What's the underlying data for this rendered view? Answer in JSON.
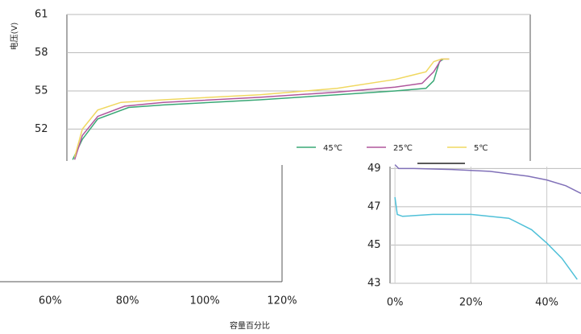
{
  "chart_data": [
    {
      "type": "line",
      "ylabel": "电压(V)",
      "xlim": [
        0,
        120
      ],
      "ylim": [
        49.5,
        61
      ],
      "yticks": [
        52,
        55,
        58,
        61
      ],
      "grid": true,
      "series": [
        {
          "name": "45℃",
          "color": "#3aa876",
          "x": [
            1.5,
            4,
            8,
            16,
            25,
            50,
            70,
            85,
            93,
            95,
            96.5,
            97.5
          ],
          "values": [
            49.6,
            51.2,
            52.8,
            53.7,
            53.9,
            54.3,
            54.7,
            55.0,
            55.2,
            55.8,
            57.3,
            57.5
          ]
        },
        {
          "name": "25℃",
          "color": "#b0569c",
          "x": [
            2,
            4,
            8,
            15,
            25,
            50,
            70,
            85,
            92,
            95,
            97,
            99
          ],
          "values": [
            49.6,
            51.5,
            53,
            53.8,
            54.1,
            54.5,
            54.9,
            55.3,
            55.6,
            56.5,
            57.5,
            57.5
          ]
        },
        {
          "name": "5℃",
          "color": "#f0d860",
          "x": [
            2,
            4,
            8,
            14,
            25,
            50,
            70,
            85,
            93,
            95,
            97,
            99
          ],
          "values": [
            49.8,
            52,
            53.5,
            54.1,
            54.3,
            54.7,
            55.2,
            55.9,
            56.5,
            57.3,
            57.5,
            57.5
          ]
        }
      ]
    },
    {
      "type": "line",
      "xlabel": "容量百分比",
      "xlim": [
        47,
        120
      ],
      "xticks": [
        {
          "value": 60,
          "label": "60%"
        },
        {
          "value": 80,
          "label": "80%"
        },
        {
          "value": 100,
          "label": "100%"
        },
        {
          "value": 120,
          "label": "120%"
        }
      ]
    },
    {
      "type": "line",
      "xlim": [
        -1.3,
        49
      ],
      "ylim": [
        43,
        49.1
      ],
      "yticks": [
        43,
        45,
        47,
        49
      ],
      "xticks": [
        {
          "value": 0,
          "label": "0%"
        },
        {
          "value": 20,
          "label": "20%"
        },
        {
          "value": 40,
          "label": "40%"
        }
      ],
      "grid": true,
      "series": [
        {
          "color": "#8070b8",
          "x": [
            0,
            1,
            5,
            15,
            25,
            35,
            40,
            45,
            49
          ],
          "values": [
            49.2,
            49.0,
            49.0,
            48.95,
            48.85,
            48.6,
            48.4,
            48.1,
            47.7
          ]
        },
        {
          "color": "#4fc0d8",
          "x": [
            0,
            0.6,
            2,
            10,
            20,
            30,
            36,
            40,
            44,
            48
          ],
          "values": [
            47.5,
            46.6,
            46.5,
            46.6,
            46.6,
            46.4,
            45.8,
            45.1,
            44.3,
            43.2
          ]
        }
      ]
    }
  ]
}
